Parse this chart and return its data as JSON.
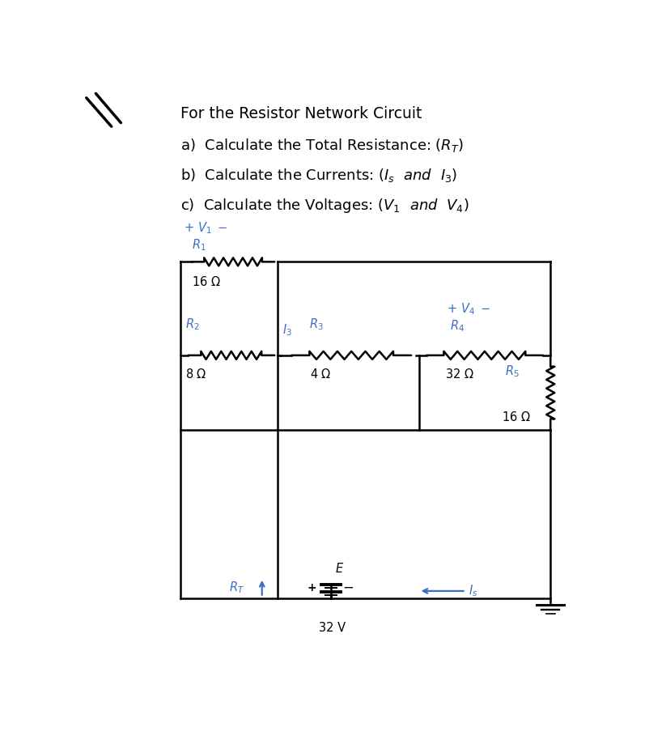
{
  "title": "For the Resistor Network Circuit",
  "bg_color": "#ffffff",
  "text_color": "#000000",
  "blue_color": "#3B6EC4",
  "lw_circuit": 1.8,
  "CL": 1.55,
  "CR": 7.45,
  "CT": 6.55,
  "CM": 5.05,
  "CB": 3.85,
  "CBB": 1.15,
  "J1x": 3.1,
  "J3x": 5.35
}
